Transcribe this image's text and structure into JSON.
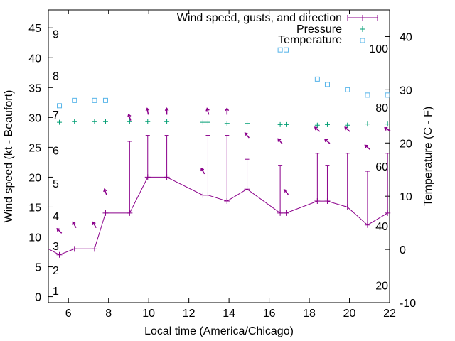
{
  "chart_data": {
    "type": "line",
    "title": "",
    "xlabel": "Local time (America/Chicago)",
    "ylabel_left": "Wind speed (kt - Beaufort)",
    "ylabel_right": "Temperature (C - F)",
    "xlim": [
      5,
      22
    ],
    "ylim_left": [
      -1,
      48
    ],
    "ylim_right": [
      -10,
      45
    ],
    "x_ticks": [
      6,
      8,
      10,
      12,
      14,
      16,
      18,
      20,
      22
    ],
    "y_ticks_left": [
      0,
      5,
      10,
      15,
      20,
      25,
      30,
      35,
      40,
      45
    ],
    "y_ticks_right_c": [
      -10,
      0,
      10,
      20,
      30,
      40
    ],
    "fahrenheit_labels": [
      {
        "label": "20",
        "c": -6.7
      },
      {
        "label": "40",
        "c": 4.4
      },
      {
        "label": "60",
        "c": 15.6
      },
      {
        "label": "80",
        "c": 26.7
      },
      {
        "label": "100",
        "c": 37.8
      }
    ],
    "beaufort_labels": [
      {
        "label": "1",
        "kt": 1
      },
      {
        "label": "2",
        "kt": 4.5
      },
      {
        "label": "3",
        "kt": 8.5
      },
      {
        "label": "4",
        "kt": 13.5
      },
      {
        "label": "5",
        "kt": 19
      },
      {
        "label": "6",
        "kt": 24.5
      },
      {
        "label": "7",
        "kt": 30.5
      },
      {
        "label": "8",
        "kt": 37
      },
      {
        "label": "9",
        "kt": 44
      }
    ],
    "legend": {
      "position": "top-right",
      "entries": [
        {
          "label": "Wind speed, gusts, and direction",
          "color": "#8b008b",
          "marker": "line-plus"
        },
        {
          "label": "Pressure",
          "color": "#009e73",
          "marker": "plus"
        },
        {
          "label": "Temperature",
          "color": "#56b4e9",
          "marker": "square"
        }
      ]
    },
    "series": [
      {
        "name": "Wind speed",
        "color": "#8b008b",
        "points": [
          {
            "x": 5.0,
            "y": 8
          },
          {
            "x": 5.55,
            "y": 7
          },
          {
            "x": 6.3,
            "y": 8
          },
          {
            "x": 7.3,
            "y": 8
          },
          {
            "x": 7.85,
            "y": 14
          },
          {
            "x": 9.05,
            "y": 14,
            "gust": 26
          },
          {
            "x": 9.95,
            "y": 20,
            "gust": 27
          },
          {
            "x": 10.9,
            "y": 20,
            "gust": 27
          },
          {
            "x": 12.7,
            "y": 17
          },
          {
            "x": 12.95,
            "y": 17,
            "gust": 27
          },
          {
            "x": 13.9,
            "y": 16,
            "gust": 27
          },
          {
            "x": 14.9,
            "y": 18,
            "gust": 23
          },
          {
            "x": 16.55,
            "y": 14,
            "gust": 22
          },
          {
            "x": 16.85,
            "y": 14
          },
          {
            "x": 18.4,
            "y": 16,
            "gust": 24
          },
          {
            "x": 18.9,
            "y": 16,
            "gust": 22
          },
          {
            "x": 19.9,
            "y": 15,
            "gust": 24
          },
          {
            "x": 20.9,
            "y": 12,
            "gust": 21
          },
          {
            "x": 21.9,
            "y": 14,
            "gust": 24
          }
        ]
      },
      {
        "name": "Wind direction",
        "color": "#8b008b",
        "arrows": [
          {
            "x": 5.55,
            "kt": 11,
            "dir": 315
          },
          {
            "x": 6.3,
            "kt": 12,
            "dir": 330
          },
          {
            "x": 7.3,
            "kt": 12,
            "dir": 330
          },
          {
            "x": 7.85,
            "kt": 17.5,
            "dir": 340
          },
          {
            "x": 9.05,
            "kt": 30,
            "dir": 340
          },
          {
            "x": 9.95,
            "kt": 31,
            "dir": 350
          },
          {
            "x": 10.9,
            "kt": 31,
            "dir": 360
          },
          {
            "x": 12.7,
            "kt": 21,
            "dir": 330
          },
          {
            "x": 12.95,
            "kt": 31,
            "dir": 345
          },
          {
            "x": 13.9,
            "kt": 31,
            "dir": 360
          },
          {
            "x": 14.9,
            "kt": 27,
            "dir": 320
          },
          {
            "x": 16.55,
            "kt": 26,
            "dir": 320
          },
          {
            "x": 16.85,
            "kt": 17.5,
            "dir": 320
          },
          {
            "x": 18.4,
            "kt": 28,
            "dir": 310
          },
          {
            "x": 18.9,
            "kt": 26,
            "dir": 310
          },
          {
            "x": 19.9,
            "kt": 28,
            "dir": 310
          },
          {
            "x": 20.9,
            "kt": 25,
            "dir": 310
          },
          {
            "x": 21.9,
            "kt": 28,
            "dir": 300
          }
        ]
      },
      {
        "name": "Pressure",
        "color": "#009e73",
        "points": [
          {
            "x": 5.55,
            "y": 29.2
          },
          {
            "x": 6.3,
            "y": 29.3
          },
          {
            "x": 7.3,
            "y": 29.3
          },
          {
            "x": 7.85,
            "y": 29.3
          },
          {
            "x": 9.05,
            "y": 29.3
          },
          {
            "x": 9.95,
            "y": 29.3
          },
          {
            "x": 10.9,
            "y": 29.3
          },
          {
            "x": 12.7,
            "y": 29.2
          },
          {
            "x": 12.95,
            "y": 29.2
          },
          {
            "x": 13.9,
            "y": 29.0
          },
          {
            "x": 14.9,
            "y": 29.0
          },
          {
            "x": 16.55,
            "y": 28.8
          },
          {
            "x": 16.85,
            "y": 28.8
          },
          {
            "x": 18.4,
            "y": 28.7
          },
          {
            "x": 18.9,
            "y": 28.8
          },
          {
            "x": 19.9,
            "y": 28.7
          },
          {
            "x": 20.9,
            "y": 28.9
          },
          {
            "x": 21.9,
            "y": 28.9
          }
        ]
      },
      {
        "name": "Temperature",
        "color": "#56b4e9",
        "points": [
          {
            "x": 5.55,
            "c": 27.0
          },
          {
            "x": 6.3,
            "c": 28.0
          },
          {
            "x": 7.3,
            "c": 28.0
          },
          {
            "x": 7.85,
            "c": 28.0
          },
          {
            "x": 16.55,
            "c": 37.5
          },
          {
            "x": 16.85,
            "c": 37.5
          },
          {
            "x": 18.4,
            "c": 32.0
          },
          {
            "x": 18.9,
            "c": 31.0
          },
          {
            "x": 19.9,
            "c": 30.0
          },
          {
            "x": 20.9,
            "c": 29.0
          },
          {
            "x": 21.9,
            "c": 29.0
          }
        ]
      }
    ]
  }
}
